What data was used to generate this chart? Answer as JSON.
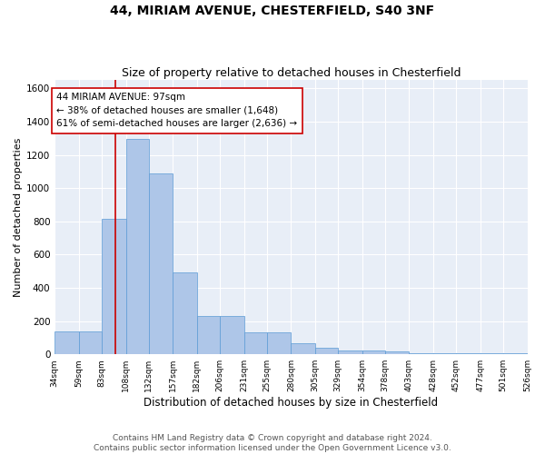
{
  "title1": "44, MIRIAM AVENUE, CHESTERFIELD, S40 3NF",
  "title2": "Size of property relative to detached houses in Chesterfield",
  "xlabel": "Distribution of detached houses by size in Chesterfield",
  "ylabel": "Number of detached properties",
  "bar_values": [
    135,
    135,
    815,
    1295,
    1090,
    495,
    230,
    230,
    130,
    130,
    65,
    40,
    25,
    25,
    15,
    8,
    5,
    5,
    5,
    5
  ],
  "bin_edges": [
    34,
    59,
    83,
    108,
    132,
    157,
    182,
    206,
    231,
    255,
    280,
    305,
    329,
    354,
    378,
    403,
    428,
    452,
    477,
    501,
    526
  ],
  "bar_color": "#aec6e8",
  "bar_edge_color": "#5b9bd5",
  "bg_color": "#e8eef7",
  "grid_color": "#ffffff",
  "vline_color": "#cc0000",
  "vline_x": 97,
  "annotation_text": "44 MIRIAM AVENUE: 97sqm\n← 38% of detached houses are smaller (1,648)\n61% of semi-detached houses are larger (2,636) →",
  "annotation_box_color": "#cc0000",
  "ylim": [
    0,
    1650
  ],
  "yticks": [
    0,
    200,
    400,
    600,
    800,
    1000,
    1200,
    1400,
    1600
  ],
  "footer_text": "Contains HM Land Registry data © Crown copyright and database right 2024.\nContains public sector information licensed under the Open Government Licence v3.0.",
  "title1_fontsize": 10,
  "title2_fontsize": 9,
  "xlabel_fontsize": 8.5,
  "ylabel_fontsize": 8,
  "annotation_fontsize": 7.5,
  "footer_fontsize": 6.5
}
